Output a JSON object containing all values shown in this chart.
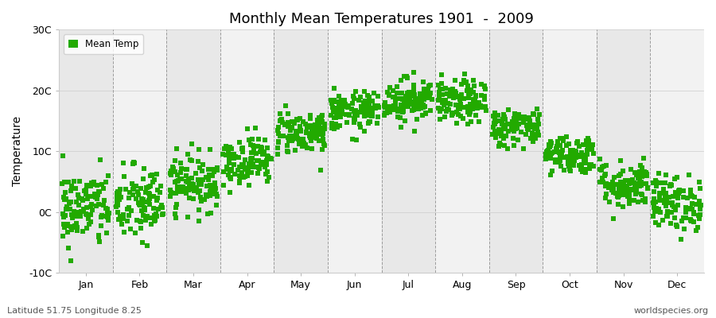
{
  "title": "Monthly Mean Temperatures 1901  -  2009",
  "ylabel": "Temperature",
  "xlabel_bottom_left": "Latitude 51.75 Longitude 8.25",
  "xlabel_bottom_right": "worldspecies.org",
  "legend_label": "Mean Temp",
  "dot_color": "#22aa00",
  "background_color": "#ffffff",
  "plot_bg_color": "#f2f2f2",
  "alt_col_color": "#e8e8e8",
  "ylim": [
    -10,
    30
  ],
  "yticks": [
    -10,
    0,
    10,
    20,
    30
  ],
  "ytick_labels": [
    "-10C",
    "0C",
    "10C",
    "20C",
    "30C"
  ],
  "months": [
    "Jan",
    "Feb",
    "Mar",
    "Apr",
    "May",
    "Jun",
    "Jul",
    "Aug",
    "Sep",
    "Oct",
    "Nov",
    "Dec"
  ],
  "month_means": [
    0.5,
    1.2,
    4.8,
    8.5,
    13.2,
    16.5,
    18.5,
    18.0,
    14.0,
    9.5,
    4.5,
    1.5
  ],
  "month_stds": [
    3.2,
    3.2,
    2.3,
    2.0,
    1.8,
    1.6,
    1.8,
    1.8,
    1.6,
    1.6,
    2.0,
    2.3
  ],
  "n_years": 109,
  "seed": 42,
  "marker_size": 18,
  "figsize": [
    9.0,
    4.0
  ],
  "dpi": 100
}
